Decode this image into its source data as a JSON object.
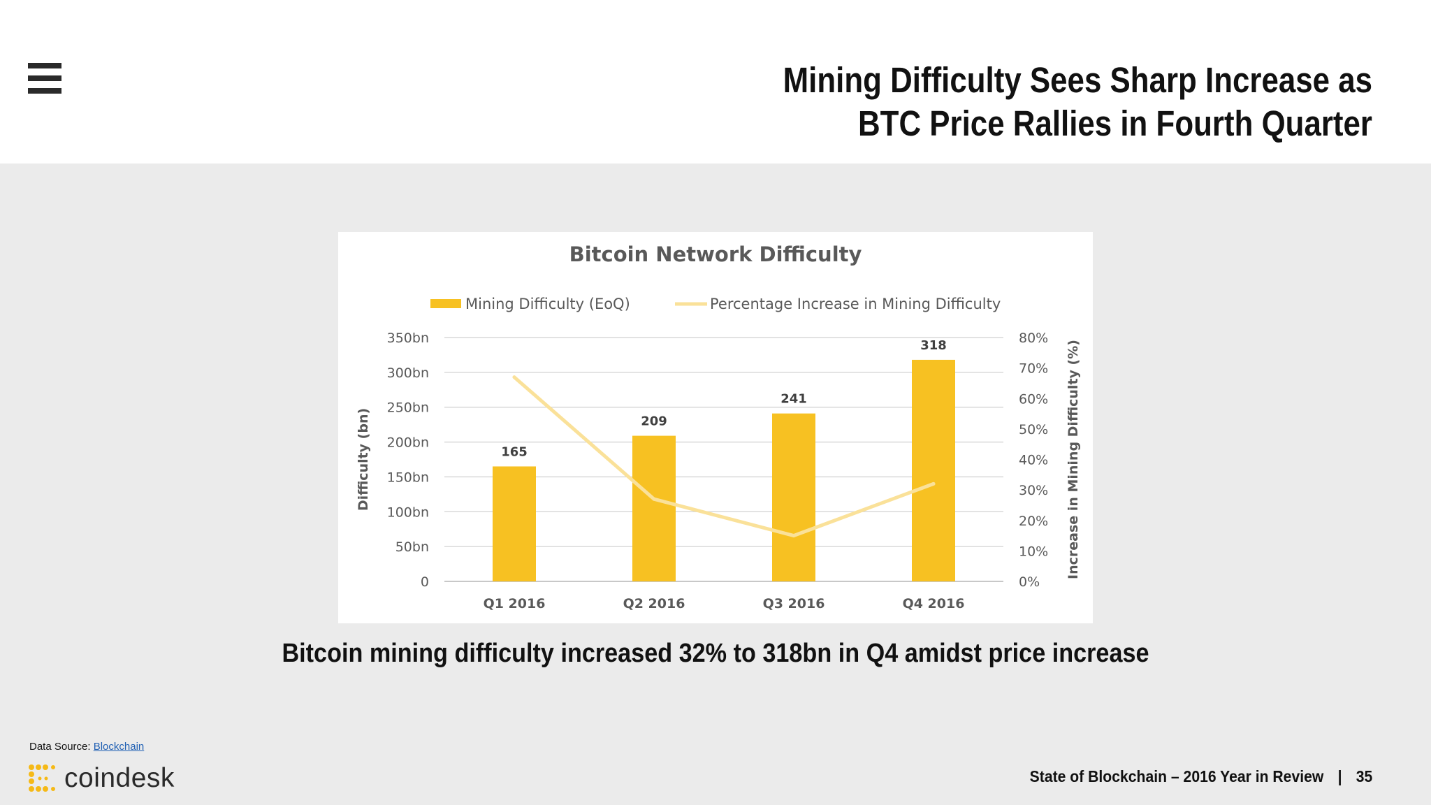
{
  "header": {
    "title_line1": "Mining Difficulty Sees Sharp Increase as",
    "title_line2": "BTC Price Rallies in Fourth Quarter"
  },
  "caption": "Bitcoin mining difficulty increased 32% to 318bn in Q4 amidst price increase",
  "source": {
    "label": "Data Source:",
    "link_text": "Blockchain"
  },
  "logo": {
    "word": "coindesk",
    "icon": "coindesk-dots-logo",
    "accent_color": "#f5b916"
  },
  "footer": {
    "report": "State of Blockchain – 2016 Year in Review",
    "separator": "|",
    "page": "35"
  },
  "colors": {
    "bar": "#f7c122",
    "line": "#fae199",
    "background": "#ebebeb"
  },
  "chart_data": {
    "type": "bar",
    "title": "Bitcoin Network Difficulty",
    "categories": [
      "Q1 2016",
      "Q2 2016",
      "Q3 2016",
      "Q4 2016"
    ],
    "series": [
      {
        "name": "Mining Difficulty (EoQ)",
        "type": "bar",
        "axis": "left",
        "values": [
          165,
          209,
          241,
          318
        ],
        "data_labels": [
          "165",
          "209",
          "241",
          "318"
        ]
      },
      {
        "name": "Percentage Increase in Mining Difficulty",
        "type": "line",
        "axis": "right",
        "values": [
          67,
          27,
          15,
          32
        ]
      }
    ],
    "ylabel": "Difficulty (bn)",
    "ylabel_right": "Increase in Mining Difficulty (%)",
    "ylim": [
      0,
      350
    ],
    "ylim_right": [
      0,
      80
    ],
    "yticks": [
      "0",
      "50bn",
      "100bn",
      "150bn",
      "200bn",
      "250bn",
      "300bn",
      "350bn"
    ],
    "yticks_right": [
      "0%",
      "10%",
      "20%",
      "30%",
      "40%",
      "50%",
      "60%",
      "70%",
      "80%"
    ],
    "legend": "top",
    "grid": true
  }
}
